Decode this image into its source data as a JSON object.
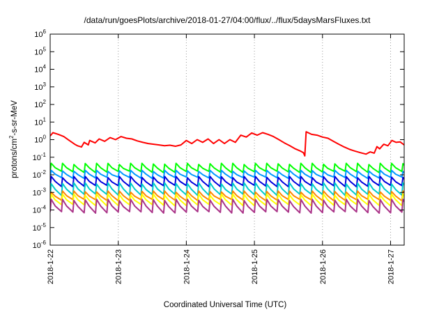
{
  "chart_data": {
    "type": "line",
    "title": "/data/run/goesPlots/archive/2018-01-27/04:00/flux/../flux/5daysMarsFluxes.txt",
    "xlabel": "Coordinated Universal Time (UTC)",
    "ylabel_parts": [
      "protons/cm",
      "2",
      "-s-sr-MeV"
    ],
    "y_scale": "log",
    "ylim": [
      1e-06,
      1000000.0
    ],
    "y_ticks": [
      {
        "base": "10",
        "exp": "6",
        "value": 1000000.0
      },
      {
        "base": "10",
        "exp": "5",
        "value": 100000.0
      },
      {
        "base": "10",
        "exp": "4",
        "value": 10000.0
      },
      {
        "base": "10",
        "exp": "3",
        "value": 1000.0
      },
      {
        "base": "10",
        "exp": "2",
        "value": 100.0
      },
      {
        "base": "10",
        "exp": "1",
        "value": 10.0
      },
      {
        "base": "10",
        "exp": "0",
        "value": 1
      },
      {
        "base": "10",
        "exp": "-1",
        "value": 0.1
      },
      {
        "base": "10",
        "exp": "-2",
        "value": 0.01
      },
      {
        "base": "10",
        "exp": "-3",
        "value": 0.001
      },
      {
        "base": "10",
        "exp": "-4",
        "value": 0.0001
      },
      {
        "base": "10",
        "exp": "-5",
        "value": 1e-05
      },
      {
        "base": "10",
        "exp": "-6",
        "value": 1e-06
      }
    ],
    "x_ticks": [
      "2018-1-22",
      "2018-1-23",
      "2018-1-24",
      "2018-1-25",
      "2018-1-26",
      "2018-1-27"
    ],
    "x_tick_days": [
      0,
      1,
      2,
      3,
      4,
      5
    ],
    "x_range_days": [
      0,
      5.2
    ],
    "x_gridlines": "dotted vertical at each day",
    "series": [
      {
        "color": "#ff0000",
        "x": [
          0,
          0.04,
          0.12,
          0.2,
          0.28,
          0.36,
          0.4,
          0.46,
          0.5,
          0.56,
          0.58,
          0.66,
          0.72,
          0.8,
          0.88,
          0.96,
          1.04,
          1.12,
          1.2,
          1.28,
          1.36,
          1.44,
          1.52,
          1.6,
          1.68,
          1.76,
          1.84,
          1.92,
          2.0,
          2.08,
          2.16,
          2.24,
          2.32,
          2.4,
          2.48,
          2.56,
          2.64,
          2.72,
          2.8,
          2.88,
          2.96,
          3.04,
          3.12,
          3.2,
          3.28,
          3.36,
          3.44,
          3.52,
          3.6,
          3.68,
          3.72,
          3.74,
          3.76,
          3.84,
          3.92,
          4.0,
          4.08,
          4.16,
          4.24,
          4.32,
          4.4,
          4.48,
          4.56,
          4.64,
          4.7,
          4.76,
          4.8,
          4.84,
          4.9,
          4.96,
          5.02,
          5.08,
          5.14,
          5.2
        ],
        "values": [
          1.6,
          2.5,
          2.0,
          1.5,
          0.9,
          0.55,
          0.45,
          0.38,
          0.7,
          0.5,
          0.9,
          0.65,
          1.1,
          0.8,
          1.3,
          1.0,
          1.5,
          1.2,
          1.1,
          0.85,
          0.7,
          0.6,
          0.55,
          0.5,
          0.45,
          0.48,
          0.42,
          0.5,
          0.9,
          0.6,
          1.0,
          0.7,
          1.1,
          0.6,
          1.0,
          0.6,
          1.0,
          0.7,
          1.8,
          1.4,
          2.4,
          1.8,
          2.5,
          2.0,
          1.5,
          1.0,
          0.65,
          0.45,
          0.3,
          0.22,
          0.18,
          0.12,
          2.8,
          2.0,
          1.8,
          1.4,
          1.2,
          0.8,
          0.55,
          0.38,
          0.28,
          0.22,
          0.18,
          0.15,
          0.2,
          0.17,
          0.4,
          0.3,
          0.55,
          0.45,
          0.9,
          0.7,
          0.75,
          0.5
        ]
      },
      {
        "color": "#00ff00",
        "values_range": [
          0.014,
          0.045
        ],
        "pattern": "sawtooth, ~4 hour period"
      },
      {
        "color": "#0099ff",
        "values_range": [
          0.0065,
          0.018
        ],
        "pattern": "sawtooth"
      },
      {
        "color": "#0000dd",
        "values_range": [
          0.0022,
          0.008
        ],
        "pattern": "sawtooth"
      },
      {
        "color": "#00cccc",
        "values_range": [
          0.0007,
          0.0035
        ],
        "pattern": "sawtooth"
      },
      {
        "color": "#ff8800",
        "values_range": [
          0.00035,
          0.0012
        ],
        "pattern": "sawtooth"
      },
      {
        "color": "#ffff00",
        "values_range": [
          0.00018,
          0.0008
        ],
        "pattern": "sawtooth"
      },
      {
        "color": "#aa3388",
        "values_range": [
          7e-05,
          0.0004
        ],
        "pattern": "sawtooth"
      }
    ],
    "grid": "dotted vertical lines at day boundaries",
    "legend": "none"
  }
}
